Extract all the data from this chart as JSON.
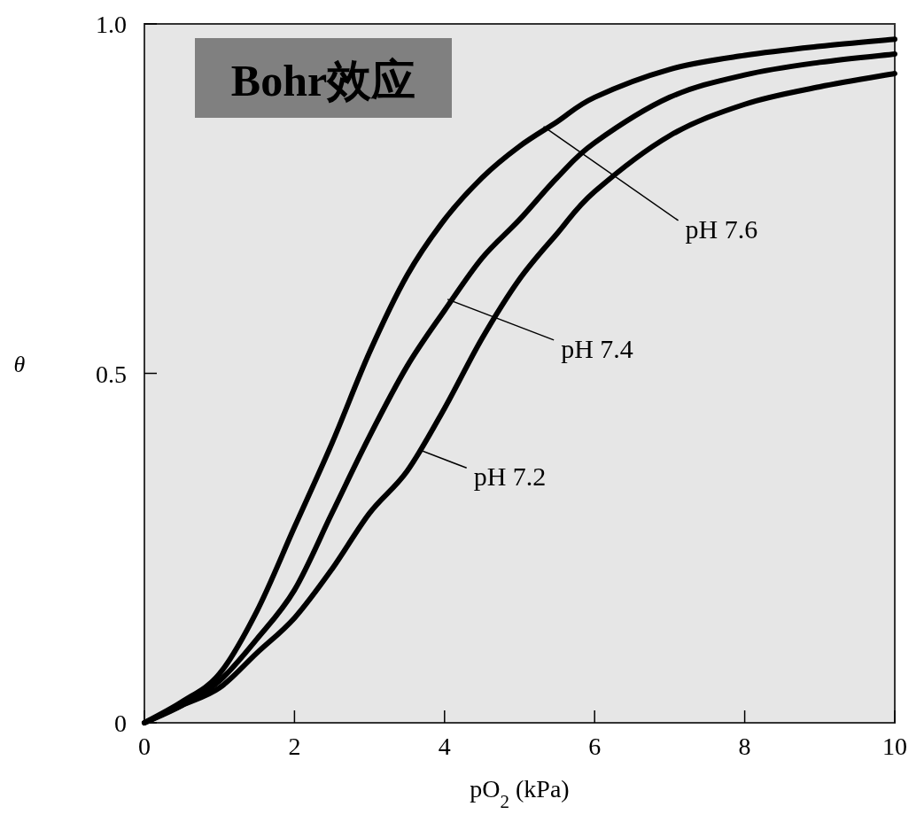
{
  "chart_data": {
    "type": "line",
    "title": "Bohr效应",
    "xlabel": "pO$_{2}$ (kPa)",
    "ylabel": "θ",
    "x": [
      0,
      0.5,
      1,
      1.5,
      2,
      2.5,
      3,
      3.5,
      4,
      4.5,
      5,
      5.5,
      6,
      7,
      8,
      9,
      10
    ],
    "xlim": [
      0,
      10
    ],
    "ylim": [
      0,
      1
    ],
    "xticks": [
      0,
      2,
      4,
      6,
      8,
      10
    ],
    "yticks": [
      0,
      0.5,
      {
        "value": 1,
        "label": "1.0"
      }
    ],
    "series": [
      {
        "color": "#000000",
        "values": [
          0,
          0.03,
          0.07,
          0.16,
          0.28,
          0.4,
          0.53,
          0.64,
          0.72,
          0.78,
          0.825,
          0.86,
          0.895,
          0.935,
          0.955,
          0.968,
          0.978
        ]
      },
      {
        "color": "#000000",
        "values": [
          0,
          0.025,
          0.06,
          0.12,
          0.19,
          0.3,
          0.41,
          0.51,
          0.59,
          0.665,
          0.72,
          0.78,
          0.83,
          0.895,
          0.927,
          0.945,
          0.957
        ]
      },
      {
        "color": "#000000",
        "values": [
          0,
          0.025,
          0.05,
          0.1,
          0.15,
          0.22,
          0.3,
          0.36,
          0.45,
          0.55,
          0.635,
          0.7,
          0.76,
          0.84,
          0.885,
          0.91,
          0.929
        ]
      }
    ],
    "annotations": [
      {
        "text": "pH 7.6",
        "x": 5.32,
        "y": 0.853
      },
      {
        "text": "pH 7.4",
        "x": 4.04,
        "y": 0.606
      },
      {
        "text": "pH 7.2",
        "x": 3.68,
        "y": 0.39
      }
    ],
    "grid": false,
    "marker": "none",
    "line_style": "solid"
  }
}
